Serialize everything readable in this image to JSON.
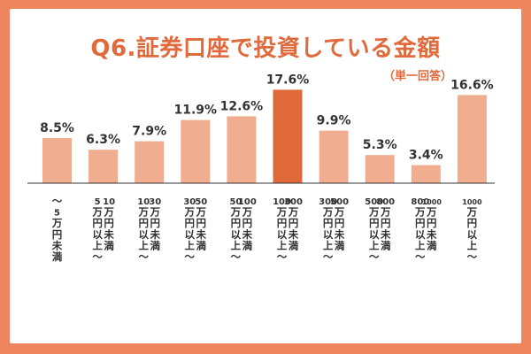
{
  "title": "Q6.証券口座で投資している金額",
  "subtitle": "（単一回答）",
  "colors": {
    "background_border": "#ed865f",
    "title": "#e06a3c",
    "bar": "#f0ad8f",
    "bar_highlight": "#e0693a",
    "axis": "#333333",
    "text": "#333333"
  },
  "chart_data": {
    "type": "bar",
    "title": "Q6.証券口座で投資している金額",
    "subtitle": "（単一回答）",
    "xlabel": "",
    "ylabel": "",
    "ylim": [
      0,
      20
    ],
    "value_suffix": "%",
    "highlight_index": 5,
    "categories": [
      "～5万円未満",
      "5万円以上～10万円未満",
      "10万円以上～30万円未満",
      "30万円以上～50万円未満",
      "50万円以上～100万円未満",
      "100万円以上～300万円未満",
      "300万円以上～500万円未満",
      "500万円以上～800万円未満",
      "800万円以上～1000万円未満",
      "1000万円以上～"
    ],
    "values": [
      8.5,
      6.3,
      7.9,
      11.9,
      12.6,
      17.6,
      9.9,
      5.3,
      3.4,
      16.6
    ],
    "value_labels": [
      "8.5%",
      "6.3%",
      "7.9%",
      "11.9%",
      "12.6%",
      "17.6%",
      "9.9%",
      "5.3%",
      "3.4%",
      "16.6%"
    ],
    "label_columns": [
      [
        [
          "～",
          "5",
          "万",
          "円",
          "未",
          "満"
        ]
      ],
      [
        [
          "5",
          "万",
          "円",
          "以",
          "上",
          "～"
        ],
        [
          "10",
          "万",
          "円",
          "未",
          "満"
        ]
      ],
      [
        [
          "10",
          "万",
          "円",
          "以",
          "上",
          "～"
        ],
        [
          "30",
          "万",
          "円",
          "未",
          "満"
        ]
      ],
      [
        [
          "30",
          "万",
          "円",
          "以",
          "上",
          "～"
        ],
        [
          "50",
          "万",
          "円",
          "未",
          "満"
        ]
      ],
      [
        [
          "50",
          "万",
          "円",
          "以",
          "上",
          "～"
        ],
        [
          "100",
          "万",
          "円",
          "未",
          "満"
        ]
      ],
      [
        [
          "100",
          "万",
          "円",
          "以",
          "上",
          "～"
        ],
        [
          "300",
          "万",
          "円",
          "未",
          "満"
        ]
      ],
      [
        [
          "300",
          "万",
          "円",
          "以",
          "上",
          "～"
        ],
        [
          "500",
          "万",
          "円",
          "未",
          "満"
        ]
      ],
      [
        [
          "500",
          "万",
          "円",
          "以",
          "上",
          "～"
        ],
        [
          "800",
          "万",
          "円",
          "未",
          "満"
        ]
      ],
      [
        [
          "800",
          "万",
          "円",
          "以",
          "上",
          "～"
        ],
        [
          "1000",
          "万",
          "円",
          "未",
          "満"
        ]
      ],
      [
        [
          "1000",
          "万",
          "円",
          "以",
          "上",
          "～"
        ]
      ]
    ]
  }
}
